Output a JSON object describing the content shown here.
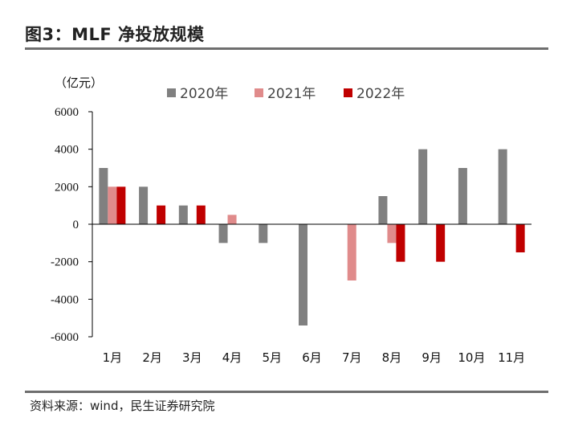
{
  "header": {
    "title": "图3：MLF 净投放规模"
  },
  "source": "资料来源：wind，民生证券研究院",
  "chart_data": {
    "type": "bar",
    "unit_label": "（亿元）",
    "categories": [
      "1月",
      "2月",
      "3月",
      "4月",
      "5月",
      "6月",
      "7月",
      "8月",
      "9月",
      "10月",
      "11月"
    ],
    "series": [
      {
        "name": "2020年",
        "color": "#808080",
        "values": [
          3000,
          2000,
          1000,
          -1000,
          -1000,
          -5400,
          0,
          1500,
          4000,
          3000,
          4000
        ]
      },
      {
        "name": "2021年",
        "color": "#e08b8b",
        "values": [
          2000,
          0,
          0,
          500,
          0,
          0,
          -3000,
          -1000,
          0,
          0,
          0
        ]
      },
      {
        "name": "2022年",
        "color": "#c00000",
        "values": [
          2000,
          1000,
          1000,
          0,
          0,
          0,
          0,
          -2000,
          -2000,
          0,
          -1500
        ]
      }
    ],
    "ylim": [
      -6000,
      6000
    ],
    "yticks": [
      6000,
      4000,
      2000,
      0,
      -2000,
      -4000,
      -6000
    ],
    "ytick_labels": [
      "6000",
      "4000",
      "2000",
      "0",
      "-2000",
      "-4000",
      "-6000"
    ],
    "legend_position": "top-center"
  }
}
